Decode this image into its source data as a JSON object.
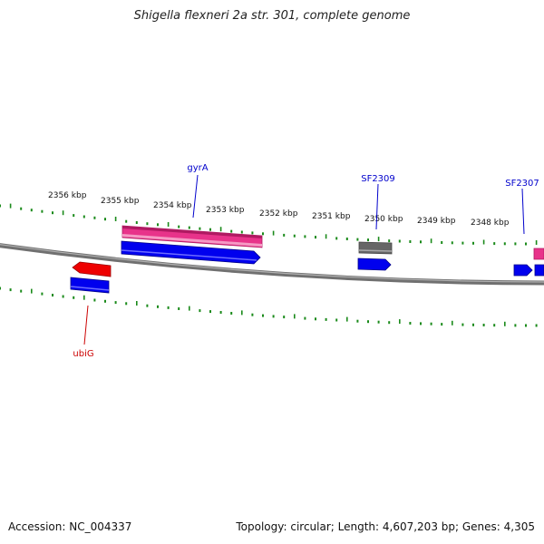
{
  "title": "Shigella flexneri 2a str. 301, complete genome",
  "footer": {
    "accession": "Accession: NC_004337",
    "summary": "Topology: circular; Length: 4,607,203 bp; Genes: 4,305"
  },
  "scale_labels": [
    "2356 kbp",
    "2355 kbp",
    "2354 kbp",
    "2353 kbp",
    "2352 kbp",
    "2351 kbp",
    "2350 kbp",
    "2349 kbp",
    "2348 kbp"
  ],
  "gene_labels": [
    {
      "name": "gyrA",
      "color": "#0000cc"
    },
    {
      "name": "SF2309",
      "color": "#0000cc"
    },
    {
      "name": "SF2307",
      "color": "#0000cc"
    },
    {
      "name": "ubiG",
      "color": "#cc0000"
    }
  ],
  "colors": {
    "tick": "#1a8a1a",
    "backbone": "#808080",
    "cds": "#0000ee",
    "gene_pink": "#e8338a",
    "gene_red": "#ee0000",
    "gene_gray": "#666666"
  }
}
